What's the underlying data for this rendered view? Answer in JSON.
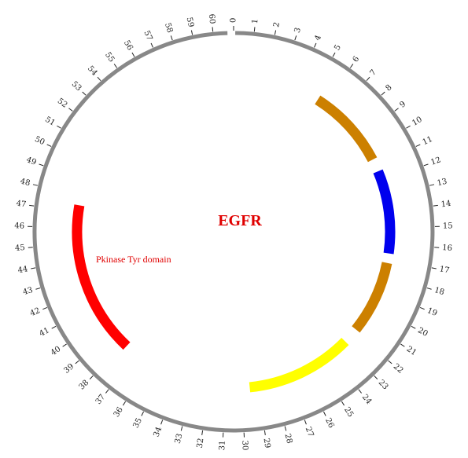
{
  "title": "EGFR",
  "scale": {
    "min": 0,
    "max": 60,
    "total_units": 61
  },
  "ring_color": "#888888",
  "tick_labels": [
    "0",
    "1",
    "2",
    "3",
    "4",
    "5",
    "6",
    "7",
    "8",
    "9",
    "10",
    "11",
    "12",
    "13",
    "14",
    "15",
    "16",
    "17",
    "18",
    "19",
    "20",
    "21",
    "22",
    "23",
    "24",
    "25",
    "26",
    "27",
    "28",
    "29",
    "30",
    "31",
    "32",
    "33",
    "34",
    "35",
    "36",
    "37",
    "38",
    "39",
    "40",
    "41",
    "42",
    "43",
    "44",
    "45",
    "46",
    "47",
    "48",
    "49",
    "50",
    "51",
    "52",
    "53",
    "54",
    "55",
    "56",
    "57",
    "58",
    "59",
    "60"
  ],
  "arcs": [
    {
      "start": 5.5,
      "end": 10.6,
      "color": "#cc8000",
      "label": ""
    },
    {
      "start": 11.4,
      "end": 16.6,
      "color": "#0000ee",
      "label": ""
    },
    {
      "start": 17.2,
      "end": 21.8,
      "color": "#cc8000",
      "label": ""
    },
    {
      "start": 22.8,
      "end": 29.5,
      "color": "#ffff00",
      "label": ""
    },
    {
      "start": 37.8,
      "end": 47.4,
      "color": "#ff0000",
      "label": "Pkinase Tyr domain"
    }
  ]
}
